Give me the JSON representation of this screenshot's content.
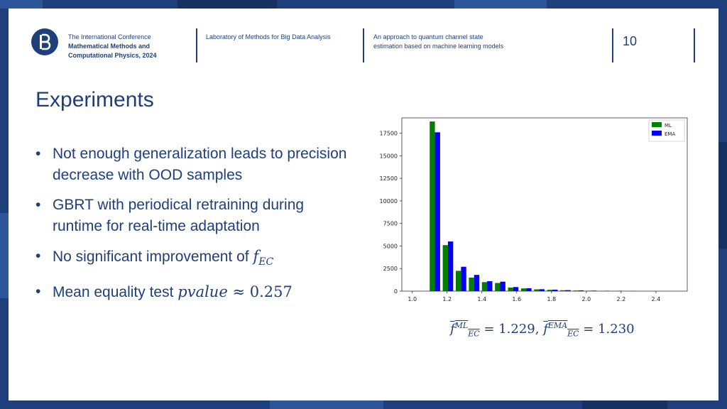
{
  "header": {
    "conference_line1": "The International Conference",
    "conference_line2": "Mathematical Methods and",
    "conference_line3": "Computational Physics, 2024",
    "laboratory": "Laboratory of Methods for Big Data Analysis",
    "approach": "An approach to quantum channel state estimation based on machine learning models",
    "page_number": "10"
  },
  "logo_text": "HSE",
  "title": "Experiments",
  "bullets": [
    {
      "text": "Not enough generalization leads to precision decrease with OOD samples"
    },
    {
      "text": "GBRT with periodical retraining during runtime for real-time adaptation"
    },
    {
      "text_before": "No significant improvement of ",
      "math": "f",
      "math_sub": "EC"
    },
    {
      "text_before": "Mean equality test ",
      "math": "pvalue",
      "rel": " ≈ ",
      "number": "0.257"
    }
  ],
  "bullet_symbol": "•",
  "formula": {
    "f": "f",
    "sup1": "ML",
    "sub1": "EC",
    "val1": " = 1.229, ",
    "sup2": "EMA",
    "sub2": "EC",
    "val2": " = 1.230"
  },
  "colors": {
    "primary": "#1f3f7a",
    "ml": "#008000",
    "ema": "#0000ff"
  },
  "chart_data": {
    "type": "bar",
    "title": "",
    "xlabel": "",
    "ylabel": "",
    "xlim": [
      0.94,
      2.58
    ],
    "ylim": [
      0,
      19200
    ],
    "xticks": [
      1.0,
      1.2,
      1.4,
      1.6,
      1.8,
      2.0,
      2.2,
      2.4
    ],
    "xtick_labels": [
      "1.0",
      "1.2",
      "1.4",
      "1.6",
      "1.8",
      "2.0",
      "2.2",
      "2.4"
    ],
    "yticks": [
      0,
      2500,
      5000,
      7500,
      10000,
      12500,
      15000,
      17500
    ],
    "ytick_labels": [
      "0",
      "2500",
      "5000",
      "7500",
      "10000",
      "12500",
      "15000",
      "17500"
    ],
    "bin_width": 0.03,
    "legend_position": "top-right",
    "series": [
      {
        "name": "ML",
        "color": "#008000",
        "x": [
          1.115,
          1.19,
          1.265,
          1.34,
          1.415,
          1.49,
          1.565,
          1.64,
          1.715,
          1.79,
          1.865,
          1.94,
          2.015,
          2.09,
          2.165,
          2.24
        ],
        "values": [
          18800,
          5100,
          2250,
          1500,
          1000,
          900,
          400,
          300,
          200,
          150,
          100,
          70,
          50,
          40,
          30,
          20
        ]
      },
      {
        "name": "EMA",
        "color": "#0000ff",
        "x": [
          1.145,
          1.22,
          1.295,
          1.37,
          1.445,
          1.52,
          1.595,
          1.67,
          1.745,
          1.82,
          1.895,
          1.97,
          2.045,
          2.12,
          2.195,
          2.27
        ],
        "values": [
          17600,
          5500,
          2700,
          1800,
          1100,
          1050,
          450,
          320,
          210,
          160,
          110,
          80,
          55,
          40,
          30,
          20
        ]
      }
    ]
  }
}
